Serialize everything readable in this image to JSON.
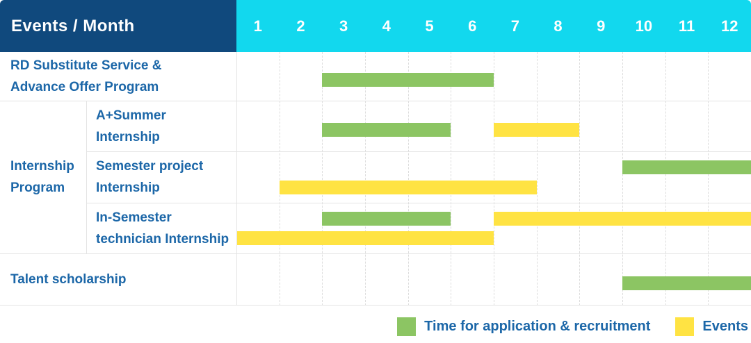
{
  "header": {
    "title": "Events / Month",
    "months": [
      "1",
      "2",
      "3",
      "4",
      "5",
      "6",
      "7",
      "8",
      "9",
      "10",
      "11",
      "12"
    ]
  },
  "colors": {
    "navy": "#10497d",
    "cyan": "#12d8ee",
    "blue": "#1c67a8",
    "green": "#8cc563",
    "yellow": "#ffe343",
    "grid_solid": "#e4e4e4",
    "grid_dash": "#dcdcdc"
  },
  "labels": {
    "row_rd": [
      "RD Substitute Service &",
      "Advance Offer Program"
    ],
    "group_internship": [
      "Internship",
      "Program"
    ],
    "sub_asummer": [
      "A+Summer",
      "Internship"
    ],
    "sub_semester_project": [
      "Semester project",
      "Internship"
    ],
    "sub_in_semester": [
      "In-Semester",
      "technician Internship"
    ],
    "row_talent": [
      "Talent scholarship"
    ]
  },
  "legend": {
    "items": [
      {
        "kind": "application",
        "label": "Time for application & recruitment"
      },
      {
        "kind": "event",
        "label": "Events"
      }
    ]
  },
  "chart_data": {
    "type": "gantt",
    "x_axis_label": "Events / Month",
    "categories": [
      1,
      2,
      3,
      4,
      5,
      6,
      7,
      8,
      9,
      10,
      11,
      12
    ],
    "x_range": [
      1,
      12
    ],
    "grid": true,
    "legend_position": "bottom-right",
    "series_kinds": {
      "application": "Time for application & recruitment",
      "event": "Events"
    },
    "rows": [
      {
        "group": null,
        "label": "RD Substitute Service & Advance Offer Program",
        "lines": 1,
        "bars": [
          {
            "kind": "application",
            "start_month": 3,
            "end_month": 6,
            "line": 0
          }
        ]
      },
      {
        "group": "Internship Program",
        "label": "A+Summer Internship",
        "lines": 1,
        "bars": [
          {
            "kind": "application",
            "start_month": 3,
            "end_month": 5,
            "line": 0
          },
          {
            "kind": "event",
            "start_month": 7,
            "end_month": 8,
            "line": 0
          }
        ]
      },
      {
        "group": "Internship Program",
        "label": "Semester project Internship",
        "lines": 2,
        "bars": [
          {
            "kind": "application",
            "start_month": 10,
            "end_month": 12,
            "line": 0
          },
          {
            "kind": "event",
            "start_month": 2,
            "end_month": 7,
            "line": 1
          }
        ]
      },
      {
        "group": "Internship Program",
        "label": "In-Semester technician Internship",
        "lines": 2,
        "bars": [
          {
            "kind": "application",
            "start_month": 3,
            "end_month": 5,
            "line": 0
          },
          {
            "kind": "event",
            "start_month": 7,
            "end_month": 12,
            "line": 0
          },
          {
            "kind": "event",
            "start_month": 1,
            "end_month": 6,
            "line": 1
          }
        ]
      },
      {
        "group": null,
        "label": "Talent scholarship",
        "lines": 1,
        "bars": [
          {
            "kind": "application",
            "start_month": 10,
            "end_month": 12,
            "line": 0
          }
        ]
      }
    ]
  }
}
